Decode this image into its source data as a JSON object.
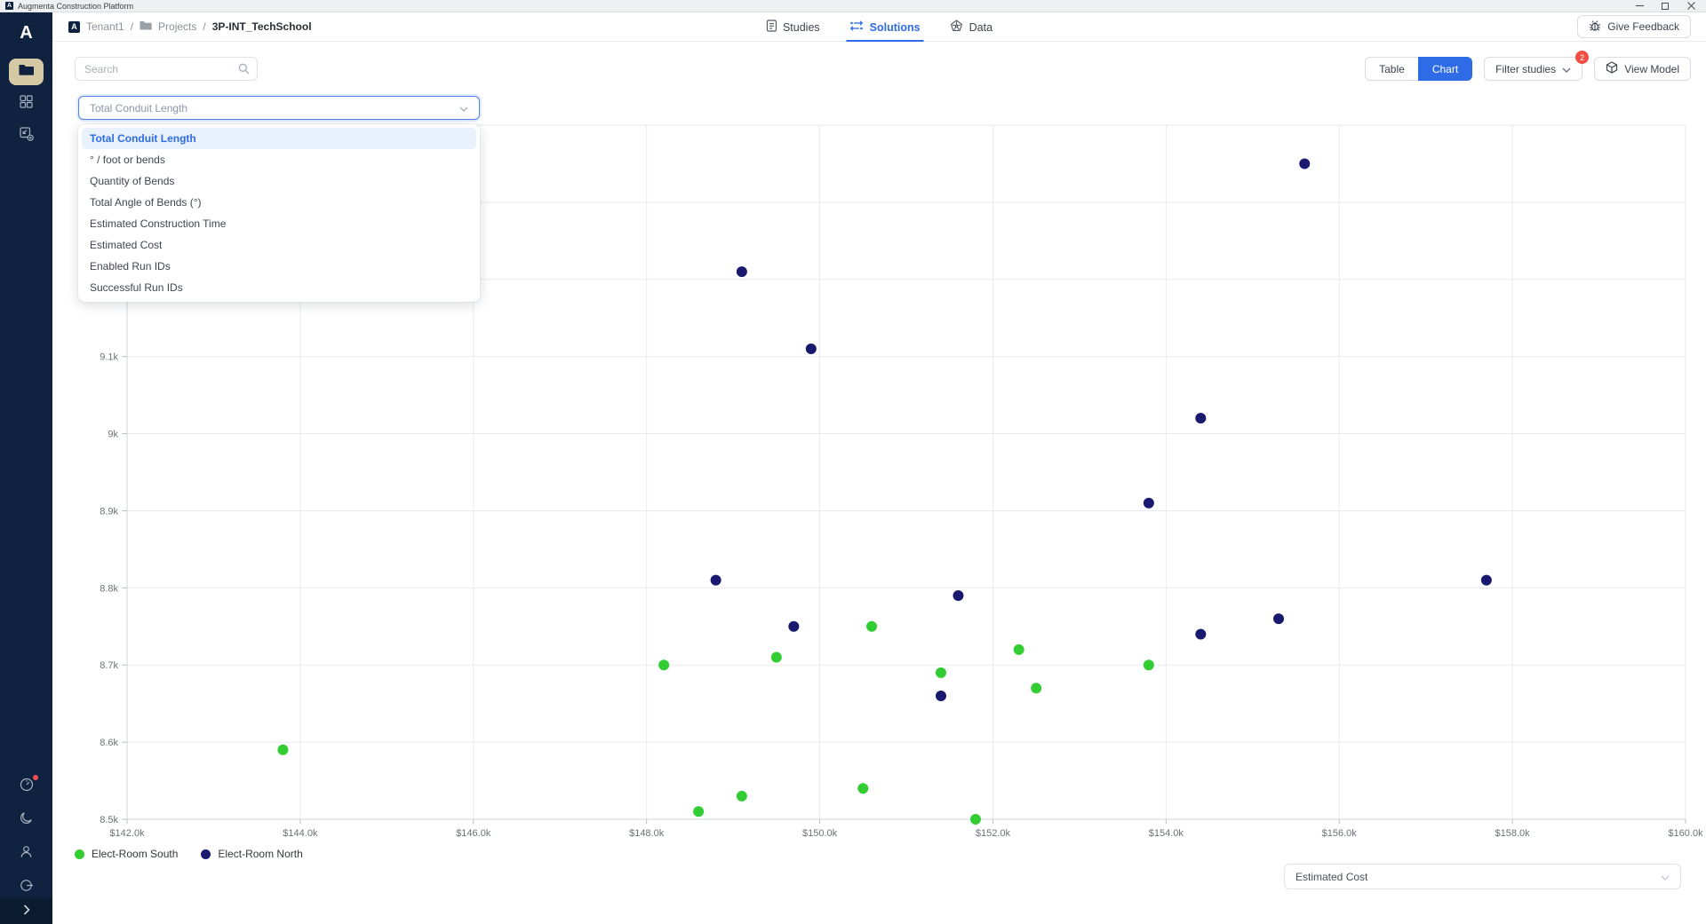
{
  "window": {
    "title": "Augmenta Construction Platform",
    "logo_letter": "A"
  },
  "sidebar": {
    "logo_letter": "A",
    "top_items": [
      {
        "name": "projects",
        "icon": "folder-icon",
        "active": true
      },
      {
        "name": "apps",
        "icon": "grid-icon",
        "active": false
      },
      {
        "name": "export",
        "icon": "box-plus-icon",
        "active": false
      }
    ],
    "bottom_items": [
      {
        "name": "usage",
        "icon": "gauge-icon",
        "has_badge": true
      },
      {
        "name": "theme",
        "icon": "moon-icon",
        "has_badge": false
      },
      {
        "name": "account",
        "icon": "user-icon",
        "has_badge": false
      },
      {
        "name": "logout",
        "icon": "logout-icon",
        "has_badge": false
      }
    ]
  },
  "header": {
    "breadcrumb": {
      "separator": "/",
      "items": [
        {
          "label": "Tenant1"
        },
        {
          "label": "Projects"
        },
        {
          "label": "3P-INT_TechSchool"
        }
      ]
    },
    "nav": [
      {
        "label": "Studies",
        "active": false
      },
      {
        "label": "Solutions",
        "active": true
      },
      {
        "label": "Data",
        "active": false
      }
    ],
    "feedback_label": "Give Feedback"
  },
  "toolbar": {
    "search_placeholder": "Search",
    "table_label": "Table",
    "chart_label": "Chart",
    "filter_label": "Filter studies",
    "filter_badge": "2",
    "view_model_label": "View Model"
  },
  "metric_dropdown": {
    "selected": "Total Conduit Length",
    "highlighted_index": 0,
    "options": [
      "Total Conduit Length",
      "° / foot or bends",
      "Quantity of Bends",
      "Total Angle of Bends (°)",
      "Estimated Construction Time",
      "Estimated Cost",
      "Enabled Run IDs",
      "Successful Run IDs"
    ]
  },
  "x_axis_dropdown": {
    "selected": "Estimated Cost"
  },
  "chart_data": {
    "type": "scatter",
    "title": "",
    "grid": true,
    "legend_position": "bottom-left",
    "x_axis": {
      "metric": "Estimated Cost",
      "min": 142,
      "max": 160,
      "step_k": 2,
      "tick_values_k": [
        142,
        144,
        146,
        148,
        150,
        152,
        154,
        156,
        158,
        160
      ],
      "tick_labels": [
        "$142.0k",
        "$144.0k",
        "$146.0k",
        "$148.0k",
        "$150.0k",
        "$152.0k",
        "$154.0k",
        "$156.0k",
        "$158.0k",
        "$160.0k"
      ]
    },
    "y_axis": {
      "metric": "Total Conduit Length",
      "min": 8.5,
      "max": 9.4,
      "grid_step": 0.1,
      "visible_tick_values_k": [
        8.5,
        8.6,
        8.7,
        8.8,
        8.9,
        9.0,
        9.1
      ],
      "visible_tick_labels": [
        "8.5k",
        "8.6k",
        "8.7k",
        "8.8k",
        "8.9k",
        "9k",
        "9.1k"
      ]
    },
    "series": [
      {
        "name": "Elect-Room South",
        "color": "#32cd32",
        "points": [
          [
            143.8,
            8.59
          ],
          [
            148.2,
            8.7
          ],
          [
            148.6,
            8.51
          ],
          [
            149.1,
            8.53
          ],
          [
            149.5,
            8.71
          ],
          [
            150.5,
            8.54
          ],
          [
            150.6,
            8.75
          ],
          [
            151.4,
            8.69
          ],
          [
            151.8,
            8.5
          ],
          [
            152.3,
            8.72
          ],
          [
            152.5,
            8.67
          ],
          [
            153.8,
            8.7
          ]
        ]
      },
      {
        "name": "Elect-Room North",
        "color": "#191970",
        "points": [
          [
            148.8,
            8.81
          ],
          [
            149.1,
            9.21
          ],
          [
            149.7,
            8.75
          ],
          [
            149.9,
            9.11
          ],
          [
            151.4,
            8.66
          ],
          [
            151.6,
            8.79
          ],
          [
            153.8,
            8.91
          ],
          [
            154.4,
            8.74
          ],
          [
            154.4,
            9.02
          ],
          [
            155.3,
            8.76
          ],
          [
            155.6,
            9.35
          ],
          [
            157.7,
            8.81
          ]
        ]
      }
    ]
  },
  "colors": {
    "accent": "#2e6be6",
    "accent_light_bg": "#e8f1fc",
    "badge_red": "#f24d42",
    "sidebar_bg": "#0f2240",
    "sidebar_active_bg": "#d5c8a5",
    "grid_line": "#e9eaec",
    "axis_line": "#d2d5d9",
    "axis_text": "#6c7176"
  }
}
